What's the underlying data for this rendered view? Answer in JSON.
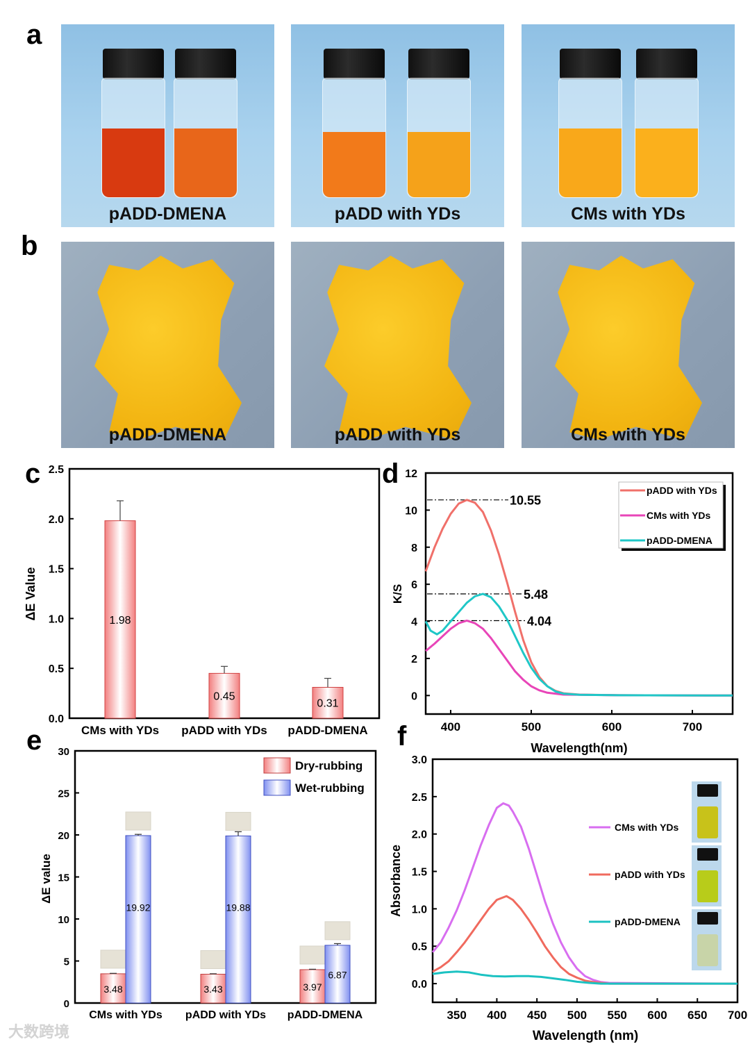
{
  "panel_labels": {
    "a": "a",
    "b": "b",
    "c": "c",
    "d": "d",
    "e": "e",
    "f": "f"
  },
  "panel_a": {
    "captions": [
      "pADD-DMENA",
      "pADD with YDs",
      "CMs with YDs"
    ],
    "liquid_colors": [
      [
        "#d83a10",
        "#e8661a"
      ],
      [
        "#f27a1a",
        "#f5a21a"
      ],
      [
        "#f9a81a",
        "#fbb01c"
      ]
    ]
  },
  "panel_b": {
    "captions": [
      "pADD-DMENA",
      "pADD with YDs",
      "CMs with YDs"
    ]
  },
  "watermark": "大数跨境",
  "chart_data": [
    {
      "id": "c",
      "type": "bar",
      "ylabel": "ΔE Value",
      "xlabel": "",
      "ylim": [
        0,
        2.5
      ],
      "yticks": [
        "0.0",
        "0.5",
        "1.0",
        "1.5",
        "2.0",
        "2.5"
      ],
      "categories": [
        "CMs with YDs",
        "pADD with YDs",
        "pADD-DMENA"
      ],
      "values": [
        1.98,
        0.45,
        0.31
      ],
      "errors": [
        0.2,
        0.07,
        0.09
      ],
      "value_labels": [
        "1.98",
        "0.45",
        "0.31"
      ],
      "color": "#f08080"
    },
    {
      "id": "d",
      "type": "line",
      "xlabel": "Wavelength(nm)",
      "ylabel": "K/S",
      "xlim": [
        369,
        750
      ],
      "ylim": [
        -1,
        12
      ],
      "xticks": [
        "400",
        "500",
        "600",
        "700"
      ],
      "yticks": [
        "0",
        "2",
        "4",
        "6",
        "8",
        "10",
        "12"
      ],
      "annotations": [
        "10.55",
        "5.48",
        "4.04"
      ],
      "annotation_values": [
        10.55,
        5.48,
        4.04
      ],
      "legend_position": "top-right",
      "series": [
        {
          "name": "pADD with YDs",
          "color": "#f0706a",
          "points": [
            [
              369,
              6.7
            ],
            [
              380,
              8.0
            ],
            [
              390,
              9.0
            ],
            [
              400,
              9.8
            ],
            [
              410,
              10.35
            ],
            [
              420,
              10.55
            ],
            [
              430,
              10.4
            ],
            [
              440,
              9.9
            ],
            [
              450,
              8.9
            ],
            [
              460,
              7.6
            ],
            [
              470,
              6.1
            ],
            [
              480,
              4.5
            ],
            [
              490,
              3.0
            ],
            [
              500,
              1.8
            ],
            [
              510,
              1.0
            ],
            [
              520,
              0.5
            ],
            [
              530,
              0.25
            ],
            [
              540,
              0.12
            ],
            [
              560,
              0.05
            ],
            [
              600,
              0.02
            ],
            [
              750,
              0
            ]
          ]
        },
        {
          "name": "CMs with YDs",
          "color": "#e845b8",
          "points": [
            [
              369,
              2.4
            ],
            [
              380,
              2.8
            ],
            [
              390,
              3.2
            ],
            [
              400,
              3.6
            ],
            [
              410,
              3.9
            ],
            [
              420,
              4.04
            ],
            [
              430,
              3.9
            ],
            [
              440,
              3.6
            ],
            [
              450,
              3.1
            ],
            [
              460,
              2.5
            ],
            [
              470,
              1.9
            ],
            [
              480,
              1.3
            ],
            [
              490,
              0.85
            ],
            [
              500,
              0.5
            ],
            [
              510,
              0.28
            ],
            [
              520,
              0.15
            ],
            [
              540,
              0.05
            ],
            [
              600,
              0.02
            ],
            [
              750,
              0
            ]
          ]
        },
        {
          "name": "pADD-DMENA",
          "color": "#1fc7c7",
          "points": [
            [
              369,
              4.0
            ],
            [
              375,
              3.5
            ],
            [
              383,
              3.3
            ],
            [
              390,
              3.5
            ],
            [
              400,
              4.0
            ],
            [
              410,
              4.5
            ],
            [
              420,
              5.0
            ],
            [
              430,
              5.35
            ],
            [
              440,
              5.48
            ],
            [
              450,
              5.3
            ],
            [
              460,
              4.8
            ],
            [
              470,
              4.1
            ],
            [
              480,
              3.2
            ],
            [
              490,
              2.3
            ],
            [
              500,
              1.5
            ],
            [
              510,
              0.9
            ],
            [
              520,
              0.5
            ],
            [
              530,
              0.22
            ],
            [
              540,
              0.1
            ],
            [
              560,
              0.04
            ],
            [
              600,
              0.02
            ],
            [
              750,
              0
            ]
          ]
        }
      ]
    },
    {
      "id": "e",
      "type": "bar",
      "ylabel": "ΔE value",
      "xlabel": "",
      "ylim": [
        0,
        30
      ],
      "yticks": [
        "0",
        "5",
        "10",
        "15",
        "20",
        "25",
        "30"
      ],
      "categories": [
        "CMs with YDs",
        "pADD with YDs",
        "pADD-DMENA"
      ],
      "legend_position": "top-right",
      "series": [
        {
          "name": "Dry-rubbing",
          "color": "#f08080",
          "values": [
            3.48,
            3.43,
            3.97
          ],
          "errors": [
            0.05,
            0.05,
            0.05
          ],
          "value_labels": [
            "3.48",
            "3.43",
            "3.97"
          ]
        },
        {
          "name": "Wet-rubbing",
          "color": "#8090f0",
          "values": [
            19.92,
            19.88,
            6.87
          ],
          "errors": [
            0.15,
            0.5,
            0.2
          ],
          "value_labels": [
            "19.92",
            "19.88",
            "6.87"
          ]
        }
      ]
    },
    {
      "id": "f",
      "type": "line",
      "xlabel": "Wavelength (nm)",
      "ylabel": "Absorbance",
      "xlim": [
        320,
        700
      ],
      "ylim": [
        -0.25,
        3.0
      ],
      "xticks": [
        "350",
        "400",
        "450",
        "500",
        "550",
        "600",
        "650",
        "700"
      ],
      "yticks": [
        "0.0",
        "0.5",
        "1.0",
        "1.5",
        "2.0",
        "2.5",
        "3.0"
      ],
      "legend_position": "right",
      "series": [
        {
          "name": "CMs with YDs",
          "color": "#d86ef0",
          "vial_color": "#c8c21a",
          "points": [
            [
              320,
              0.42
            ],
            [
              330,
              0.55
            ],
            [
              340,
              0.75
            ],
            [
              350,
              0.98
            ],
            [
              360,
              1.25
            ],
            [
              370,
              1.55
            ],
            [
              380,
              1.85
            ],
            [
              390,
              2.12
            ],
            [
              400,
              2.35
            ],
            [
              408,
              2.41
            ],
            [
              415,
              2.38
            ],
            [
              420,
              2.3
            ],
            [
              430,
              2.1
            ],
            [
              440,
              1.8
            ],
            [
              450,
              1.45
            ],
            [
              460,
              1.1
            ],
            [
              470,
              0.8
            ],
            [
              480,
              0.55
            ],
            [
              490,
              0.35
            ],
            [
              500,
              0.2
            ],
            [
              510,
              0.1
            ],
            [
              520,
              0.05
            ],
            [
              530,
              0.02
            ],
            [
              540,
              0.01
            ],
            [
              700,
              0
            ]
          ]
        },
        {
          "name": "pADD with YDs",
          "color": "#f06a5e",
          "vial_color": "#b8cc1a",
          "points": [
            [
              320,
              0.16
            ],
            [
              330,
              0.22
            ],
            [
              340,
              0.3
            ],
            [
              350,
              0.42
            ],
            [
              360,
              0.55
            ],
            [
              370,
              0.7
            ],
            [
              380,
              0.85
            ],
            [
              390,
              1.0
            ],
            [
              400,
              1.12
            ],
            [
              412,
              1.17
            ],
            [
              420,
              1.12
            ],
            [
              430,
              1.0
            ],
            [
              440,
              0.85
            ],
            [
              450,
              0.68
            ],
            [
              460,
              0.5
            ],
            [
              470,
              0.35
            ],
            [
              480,
              0.22
            ],
            [
              490,
              0.13
            ],
            [
              500,
              0.08
            ],
            [
              510,
              0.04
            ],
            [
              520,
              0.02
            ],
            [
              540,
              0
            ],
            [
              700,
              0
            ]
          ]
        },
        {
          "name": "pADD-DMENA",
          "color": "#1cc2c2",
          "vial_color": "#c8d4a8",
          "points": [
            [
              320,
              0.13
            ],
            [
              335,
              0.15
            ],
            [
              350,
              0.16
            ],
            [
              365,
              0.15
            ],
            [
              380,
              0.12
            ],
            [
              395,
              0.1
            ],
            [
              410,
              0.095
            ],
            [
              425,
              0.1
            ],
            [
              440,
              0.1
            ],
            [
              455,
              0.09
            ],
            [
              470,
              0.07
            ],
            [
              485,
              0.05
            ],
            [
              500,
              0.025
            ],
            [
              515,
              0.01
            ],
            [
              530,
              0
            ],
            [
              700,
              0
            ]
          ]
        }
      ]
    }
  ]
}
